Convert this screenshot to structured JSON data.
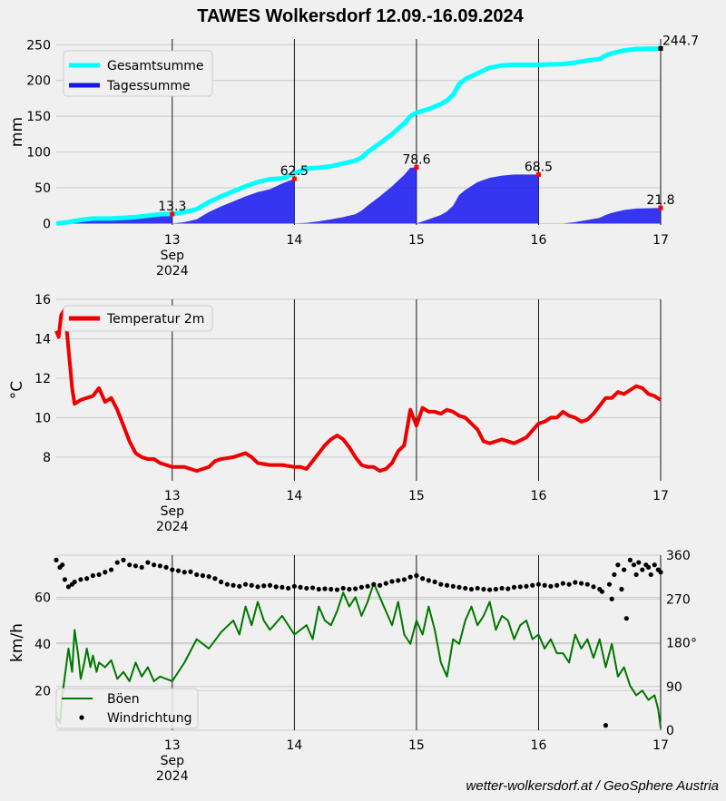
{
  "title": "TAWES Wolkersdorf 12.09.-16.09.2024",
  "credit": "wetter-wolkersdorf.at / GeoSphere Austria",
  "colors": {
    "gesamtsumme": "#00ffff",
    "tagessumme": "#1515f0",
    "temperatur": "#ee0000",
    "boeen": "#007700",
    "windrichtung": "#000000",
    "marker": "#ff0000"
  },
  "chart_data": [
    {
      "type": "area",
      "ylabel": "mm",
      "ylim": [
        -2,
        258
      ],
      "xlim": [
        12.05,
        17.0
      ],
      "xticks": [
        13,
        14,
        15,
        16,
        17
      ],
      "xticklabels": [
        [
          "13",
          "Sep",
          "2024"
        ],
        [
          "14"
        ],
        [
          "15"
        ],
        [
          "16"
        ],
        [
          "17"
        ]
      ],
      "yticks": [
        0,
        50,
        100,
        150,
        200,
        250
      ],
      "grid": true,
      "legend": "top-left",
      "series": [
        {
          "name": "Gesamtsumme",
          "style": "line",
          "x": [
            12.05,
            12.15,
            12.25,
            12.35,
            12.5,
            12.6,
            12.7,
            12.8,
            12.9,
            13.0,
            13.1,
            13.2,
            13.3,
            13.4,
            13.5,
            13.6,
            13.7,
            13.8,
            13.9,
            14.0,
            14.1,
            14.2,
            14.3,
            14.4,
            14.5,
            14.55,
            14.6,
            14.7,
            14.8,
            14.9,
            14.95,
            15.0,
            15.1,
            15.2,
            15.25,
            15.3,
            15.35,
            15.4,
            15.5,
            15.6,
            15.7,
            15.8,
            16.0,
            16.2,
            16.3,
            16.4,
            16.5,
            16.55,
            16.6,
            16.7,
            16.8,
            17.0
          ],
          "y": [
            0,
            2,
            5,
            7,
            7,
            8,
            9,
            11,
            13,
            13.3,
            16,
            20,
            30,
            38,
            45,
            52,
            58,
            62,
            63,
            70,
            77,
            78,
            80,
            84,
            88,
            92,
            100,
            112,
            125,
            140,
            150,
            155,
            160,
            167,
            172,
            180,
            195,
            202,
            210,
            218,
            221,
            222,
            222,
            223,
            225,
            228,
            230,
            235,
            238,
            242,
            244,
            244.7
          ]
        },
        {
          "name": "Tagessumme",
          "style": "area",
          "segments": [
            {
              "x": [
                12.05,
                12.15,
                12.25,
                12.35,
                12.5,
                12.6,
                12.7,
                12.8,
                12.9,
                13.0
              ],
              "y": [
                0,
                2,
                5,
                7,
                7,
                8,
                9,
                11,
                13,
                13.3
              ]
            },
            {
              "x": [
                13.0,
                13.1,
                13.2,
                13.3,
                13.4,
                13.5,
                13.6,
                13.7,
                13.8,
                13.9,
                14.0
              ],
              "y": [
                0,
                2,
                6,
                16,
                24,
                31,
                38,
                44,
                48,
                56,
                62.5
              ]
            },
            {
              "x": [
                14.0,
                14.1,
                14.2,
                14.3,
                14.4,
                14.5,
                14.55,
                14.6,
                14.7,
                14.8,
                14.9,
                14.95,
                15.0
              ],
              "y": [
                0,
                1,
                3,
                6,
                9,
                13,
                18,
                25,
                38,
                52,
                68,
                78,
                78.6
              ]
            },
            {
              "x": [
                15.0,
                15.1,
                15.2,
                15.25,
                15.3,
                15.35,
                15.4,
                15.5,
                15.6,
                15.7,
                15.8,
                16.0
              ],
              "y": [
                0,
                6,
                12,
                17,
                25,
                40,
                47,
                58,
                64,
                67,
                68.5,
                68.5
              ]
            },
            {
              "x": [
                16.0,
                16.2,
                16.3,
                16.4,
                16.5,
                16.55,
                16.6,
                16.7,
                16.8,
                17.0
              ],
              "y": [
                0,
                0,
                2,
                5,
                8,
                12,
                15,
                19,
                21,
                21.8
              ]
            }
          ]
        }
      ],
      "annotations": [
        {
          "x": 13.0,
          "y": 13.3,
          "text": "13.3"
        },
        {
          "x": 14.0,
          "y": 62.5,
          "text": "62.5"
        },
        {
          "x": 15.0,
          "y": 78.6,
          "text": "78.6"
        },
        {
          "x": 16.0,
          "y": 68.5,
          "text": "68.5"
        },
        {
          "x": 17.0,
          "y": 21.8,
          "text": "21.8"
        },
        {
          "x": 17.0,
          "y": 244.7,
          "text": "244.7"
        }
      ]
    },
    {
      "type": "line",
      "ylabel": "°C",
      "ylim": [
        6.8,
        16.0
      ],
      "xlim": [
        12.05,
        17.0
      ],
      "xticks": [
        13,
        14,
        15,
        16,
        17
      ],
      "xticklabels": [
        [
          "13",
          "Sep",
          "2024"
        ],
        [
          "14"
        ],
        [
          "15"
        ],
        [
          "16"
        ],
        [
          "17"
        ]
      ],
      "yticks": [
        8,
        10,
        12,
        14,
        16
      ],
      "grid": true,
      "legend": "top-left",
      "series": [
        {
          "name": "Temperatur 2m",
          "x": [
            12.05,
            12.07,
            12.09,
            12.12,
            12.15,
            12.18,
            12.2,
            12.25,
            12.3,
            12.35,
            12.4,
            12.45,
            12.5,
            12.55,
            12.6,
            12.65,
            12.7,
            12.75,
            12.8,
            12.85,
            12.9,
            13.0,
            13.1,
            13.2,
            13.3,
            13.35,
            13.4,
            13.5,
            13.6,
            13.65,
            13.7,
            13.8,
            13.9,
            14.0,
            14.05,
            14.1,
            14.15,
            14.2,
            14.25,
            14.3,
            14.35,
            14.4,
            14.45,
            14.5,
            14.55,
            14.6,
            14.65,
            14.7,
            14.75,
            14.8,
            14.85,
            14.9,
            14.95,
            15.0,
            15.05,
            15.1,
            15.15,
            15.2,
            15.25,
            15.3,
            15.35,
            15.4,
            15.45,
            15.5,
            15.55,
            15.6,
            15.65,
            15.7,
            15.8,
            15.9,
            16.0,
            16.05,
            16.1,
            16.15,
            16.2,
            16.25,
            16.3,
            16.35,
            16.4,
            16.45,
            16.5,
            16.55,
            16.6,
            16.65,
            16.7,
            16.75,
            16.8,
            16.85,
            16.9,
            16.95,
            17.0
          ],
          "y": [
            14.4,
            14.1,
            15.2,
            15.5,
            13.5,
            11.5,
            10.7,
            10.9,
            11.0,
            11.1,
            11.5,
            10.8,
            11.0,
            10.4,
            9.6,
            8.8,
            8.2,
            8.0,
            7.9,
            7.9,
            7.7,
            7.5,
            7.5,
            7.3,
            7.5,
            7.8,
            7.9,
            8.0,
            8.2,
            8.0,
            7.7,
            7.6,
            7.6,
            7.5,
            7.5,
            7.4,
            7.8,
            8.2,
            8.6,
            8.9,
            9.1,
            8.9,
            8.5,
            8.0,
            7.6,
            7.5,
            7.5,
            7.3,
            7.4,
            7.7,
            8.3,
            8.6,
            10.4,
            9.6,
            10.5,
            10.3,
            10.3,
            10.2,
            10.4,
            10.3,
            10.1,
            10.0,
            9.7,
            9.4,
            8.8,
            8.7,
            8.8,
            8.9,
            8.7,
            9.0,
            9.7,
            9.8,
            10.0,
            10.0,
            10.3,
            10.1,
            10.0,
            9.8,
            9.9,
            10.2,
            10.6,
            11.0,
            11.0,
            11.3,
            11.2,
            11.4,
            11.6,
            11.5,
            11.2,
            11.1,
            10.9
          ]
        }
      ]
    },
    {
      "type": "line",
      "ylabel": "km/h",
      "ylim": [
        3,
        78
      ],
      "xlim": [
        12.05,
        17.0
      ],
      "xticks": [
        13,
        14,
        15,
        16,
        17
      ],
      "xticklabels": [
        [
          "13",
          "Sep",
          "2024"
        ],
        [
          "14"
        ],
        [
          "15"
        ],
        [
          "16"
        ],
        [
          "17"
        ]
      ],
      "yticks": [
        20,
        40,
        60
      ],
      "y2label": "°",
      "y2lim": [
        0,
        360
      ],
      "y2ticks": [
        0,
        90,
        180,
        270,
        360
      ],
      "grid": true,
      "legend": "bottom-left",
      "series": [
        {
          "name": "Böen",
          "axis": "left",
          "x": [
            12.05,
            12.08,
            12.1,
            12.13,
            12.15,
            12.18,
            12.2,
            12.23,
            12.25,
            12.28,
            12.3,
            12.33,
            12.35,
            12.38,
            12.4,
            12.45,
            12.5,
            12.55,
            12.6,
            12.65,
            12.7,
            12.75,
            12.8,
            12.85,
            12.9,
            13.0,
            13.1,
            13.2,
            13.3,
            13.4,
            13.5,
            13.55,
            13.6,
            13.65,
            13.7,
            13.75,
            13.8,
            13.9,
            14.0,
            14.1,
            14.15,
            14.2,
            14.25,
            14.3,
            14.35,
            14.4,
            14.45,
            14.5,
            14.55,
            14.6,
            14.65,
            14.7,
            14.75,
            14.8,
            14.85,
            14.9,
            14.95,
            15.0,
            15.05,
            15.1,
            15.15,
            15.2,
            15.25,
            15.3,
            15.35,
            15.4,
            15.45,
            15.5,
            15.55,
            15.6,
            15.65,
            15.7,
            15.75,
            15.8,
            15.85,
            15.9,
            15.95,
            16.0,
            16.05,
            16.1,
            16.15,
            16.2,
            16.25,
            16.3,
            16.35,
            16.4,
            16.45,
            16.5,
            16.55,
            16.6,
            16.65,
            16.7,
            16.75,
            16.8,
            16.85,
            16.9,
            16.95,
            16.98,
            17.0
          ],
          "y": [
            9,
            6,
            18,
            30,
            38,
            28,
            46,
            35,
            25,
            32,
            38,
            30,
            35,
            28,
            32,
            30,
            33,
            25,
            28,
            24,
            32,
            26,
            30,
            24,
            26,
            24,
            32,
            42,
            38,
            45,
            50,
            44,
            56,
            48,
            58,
            50,
            46,
            52,
            44,
            48,
            42,
            56,
            50,
            48,
            54,
            62,
            56,
            60,
            52,
            58,
            66,
            60,
            54,
            48,
            58,
            44,
            40,
            50,
            44,
            56,
            46,
            32,
            26,
            42,
            40,
            50,
            56,
            48,
            52,
            58,
            46,
            52,
            50,
            42,
            48,
            50,
            42,
            44,
            38,
            42,
            36,
            36,
            32,
            44,
            38,
            42,
            34,
            42,
            30,
            40,
            26,
            30,
            22,
            18,
            20,
            16,
            18,
            12,
            4
          ]
        },
        {
          "name": "Windrichtung",
          "axis": "right",
          "style": "scatter",
          "x": [
            12.05,
            12.08,
            12.1,
            12.12,
            12.15,
            12.18,
            12.2,
            12.25,
            12.3,
            12.35,
            12.4,
            12.45,
            12.5,
            12.55,
            12.6,
            12.65,
            12.7,
            12.75,
            12.8,
            12.85,
            12.9,
            12.95,
            13.0,
            13.05,
            13.1,
            13.15,
            13.2,
            13.25,
            13.3,
            13.35,
            13.4,
            13.45,
            13.5,
            13.55,
            13.6,
            13.65,
            13.7,
            13.75,
            13.8,
            13.85,
            13.9,
            13.95,
            14.0,
            14.05,
            14.1,
            14.15,
            14.2,
            14.25,
            14.3,
            14.35,
            14.4,
            14.45,
            14.5,
            14.55,
            14.6,
            14.65,
            14.7,
            14.75,
            14.8,
            14.85,
            14.9,
            14.95,
            15.0,
            15.05,
            15.1,
            15.15,
            15.2,
            15.25,
            15.3,
            15.35,
            15.4,
            15.45,
            15.5,
            15.55,
            15.6,
            15.65,
            15.7,
            15.75,
            15.8,
            15.85,
            15.9,
            15.95,
            16.0,
            16.05,
            16.1,
            16.15,
            16.2,
            16.25,
            16.3,
            16.35,
            16.4,
            16.45,
            16.5,
            16.52,
            16.55,
            16.58,
            16.6,
            16.62,
            16.65,
            16.68,
            16.7,
            16.72,
            16.75,
            16.78,
            16.8,
            16.82,
            16.85,
            16.88,
            16.9,
            16.92,
            16.95,
            16.98,
            17.0
          ],
          "y": [
            350,
            335,
            340,
            310,
            295,
            300,
            305,
            310,
            312,
            318,
            320,
            325,
            330,
            345,
            350,
            340,
            338,
            335,
            345,
            340,
            338,
            335,
            330,
            328,
            325,
            326,
            320,
            318,
            316,
            312,
            305,
            300,
            298,
            296,
            300,
            298,
            295,
            297,
            298,
            295,
            294,
            292,
            296,
            294,
            292,
            293,
            290,
            291,
            290,
            289,
            292,
            290,
            291,
            294,
            296,
            300,
            298,
            302,
            306,
            308,
            310,
            315,
            318,
            312,
            308,
            305,
            300,
            298,
            296,
            294,
            292,
            290,
            292,
            290,
            289,
            290,
            292,
            291,
            294,
            295,
            296,
            298,
            300,
            298,
            296,
            298,
            302,
            300,
            304,
            302,
            300,
            295,
            290,
            285,
            10,
            300,
            270,
            320,
            340,
            290,
            330,
            230,
            350,
            340,
            320,
            345,
            330,
            340,
            335,
            320,
            340,
            330,
            325
          ]
        }
      ]
    }
  ]
}
